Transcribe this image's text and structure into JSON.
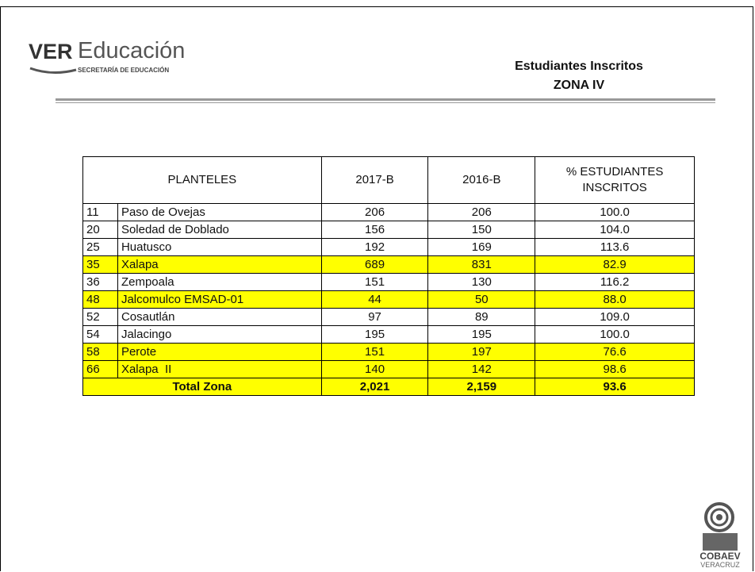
{
  "header": {
    "logo_main": "VER",
    "logo_word": "Educación",
    "logo_sub": "SECRETARÍA DE EDUCACIÓN",
    "title": "Estudiantes Inscritos",
    "subtitle": "ZONA IV"
  },
  "table": {
    "headers": [
      "PLANTELES",
      "2017-B",
      "2016-B",
      "% ESTUDIANTES INSCRITOS"
    ],
    "highlight_color": "#ffff00",
    "rows": [
      {
        "num": "11",
        "name": "Paso de Ovejas",
        "y2017": "206",
        "y2016": "206",
        "pct": "100.0",
        "highlight": false
      },
      {
        "num": "20",
        "name": "Soledad de Doblado",
        "y2017": "156",
        "y2016": "150",
        "pct": "104.0",
        "highlight": false
      },
      {
        "num": "25",
        "name": "Huatusco",
        "y2017": "192",
        "y2016": "169",
        "pct": "113.6",
        "highlight": false
      },
      {
        "num": "35",
        "name": "Xalapa",
        "y2017": "689",
        "y2016": "831",
        "pct": "82.9",
        "highlight": true
      },
      {
        "num": "36",
        "name": "Zempoala",
        "y2017": "151",
        "y2016": "130",
        "pct": "116.2",
        "highlight": false
      },
      {
        "num": "48",
        "name": "Jalcomulco EMSAD-01",
        "y2017": "44",
        "y2016": "50",
        "pct": "88.0",
        "highlight": true
      },
      {
        "num": "52",
        "name": "Cosautlán",
        "y2017": "97",
        "y2016": "89",
        "pct": "109.0",
        "highlight": false
      },
      {
        "num": "54",
        "name": "Jalacingo",
        "y2017": "195",
        "y2016": "195",
        "pct": "100.0",
        "highlight": false
      },
      {
        "num": "58",
        "name": "Perote",
        "y2017": "151",
        "y2016": "197",
        "pct": "76.6",
        "highlight": true
      },
      {
        "num": "66",
        "name": "Xalapa  II",
        "y2017": "140",
        "y2016": "142",
        "pct": "98.6",
        "highlight": true
      }
    ],
    "total": {
      "label": "Total Zona",
      "y2017": "2,021",
      "y2016": "2,159",
      "pct": "93.6"
    }
  },
  "footer": {
    "logo_main": "COBAEV",
    "logo_sub": "VERACRUZ"
  }
}
